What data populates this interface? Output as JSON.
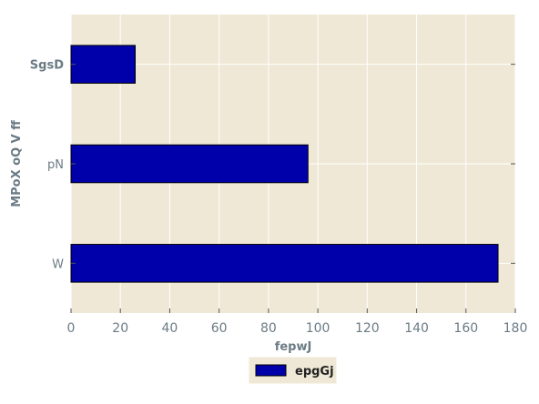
{
  "chart_data": {
    "type": "bar",
    "orientation": "horizontal",
    "categories": [
      "W",
      "pN",
      "SgsD"
    ],
    "series": [
      {
        "name": "epgGj",
        "values": [
          173,
          96,
          26
        ],
        "color": "#0000aa"
      }
    ],
    "xlabel": "fepwJ",
    "ylabel": "MPoX oQ V ff",
    "xlim": [
      0,
      180
    ],
    "xticks": [
      0,
      20,
      40,
      60,
      80,
      100,
      120,
      140,
      160,
      180
    ],
    "grid": true,
    "legend": "bottom-center",
    "background": "#efe8d6",
    "grid_color": "#ffffff",
    "text_color": "#6b7b85"
  }
}
